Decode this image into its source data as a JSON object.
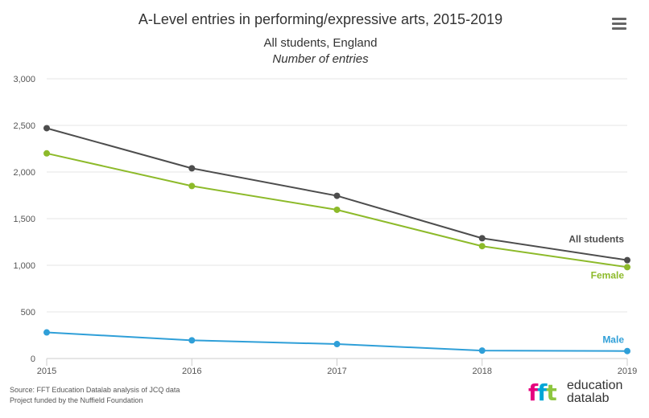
{
  "header": {
    "title": "A-Level entries in performing/expressive arts, 2015-2019",
    "subtitle": "All students, England",
    "subtitle2": "Number of entries",
    "menu_icon": "hamburger-menu-icon"
  },
  "footer": {
    "source_line1": "Source: FFT Education Datalab analysis of JCQ data",
    "source_line2": "Project funded by the Nuffield Foundation",
    "logo_mark": "fft",
    "logo_word1": "education",
    "logo_word2": "datalab"
  },
  "chart_data": {
    "type": "line",
    "title": "A-Level entries in performing/expressive arts, 2015-2019",
    "subtitle": "All students, England",
    "ylabel": "Number of entries",
    "x": [
      2015,
      2016,
      2017,
      2018,
      2019
    ],
    "ylim": [
      0,
      3000
    ],
    "yticks": [
      0,
      500,
      1000,
      1500,
      2000,
      2500,
      3000
    ],
    "ytick_labels": [
      "0",
      "500",
      "1,000",
      "1,500",
      "2,000",
      "2,500",
      "3,000"
    ],
    "grid": "horizontal",
    "legend": "inline labels at line ends",
    "series": [
      {
        "name": "All students",
        "color": "#4d4d4d",
        "values": [
          2470,
          2040,
          1745,
          1290,
          1055
        ]
      },
      {
        "name": "Female",
        "color": "#8dba2a",
        "values": [
          2200,
          1850,
          1595,
          1205,
          980
        ]
      },
      {
        "name": "Male",
        "color": "#2f9fd8",
        "values": [
          280,
          195,
          155,
          85,
          80
        ]
      }
    ]
  }
}
